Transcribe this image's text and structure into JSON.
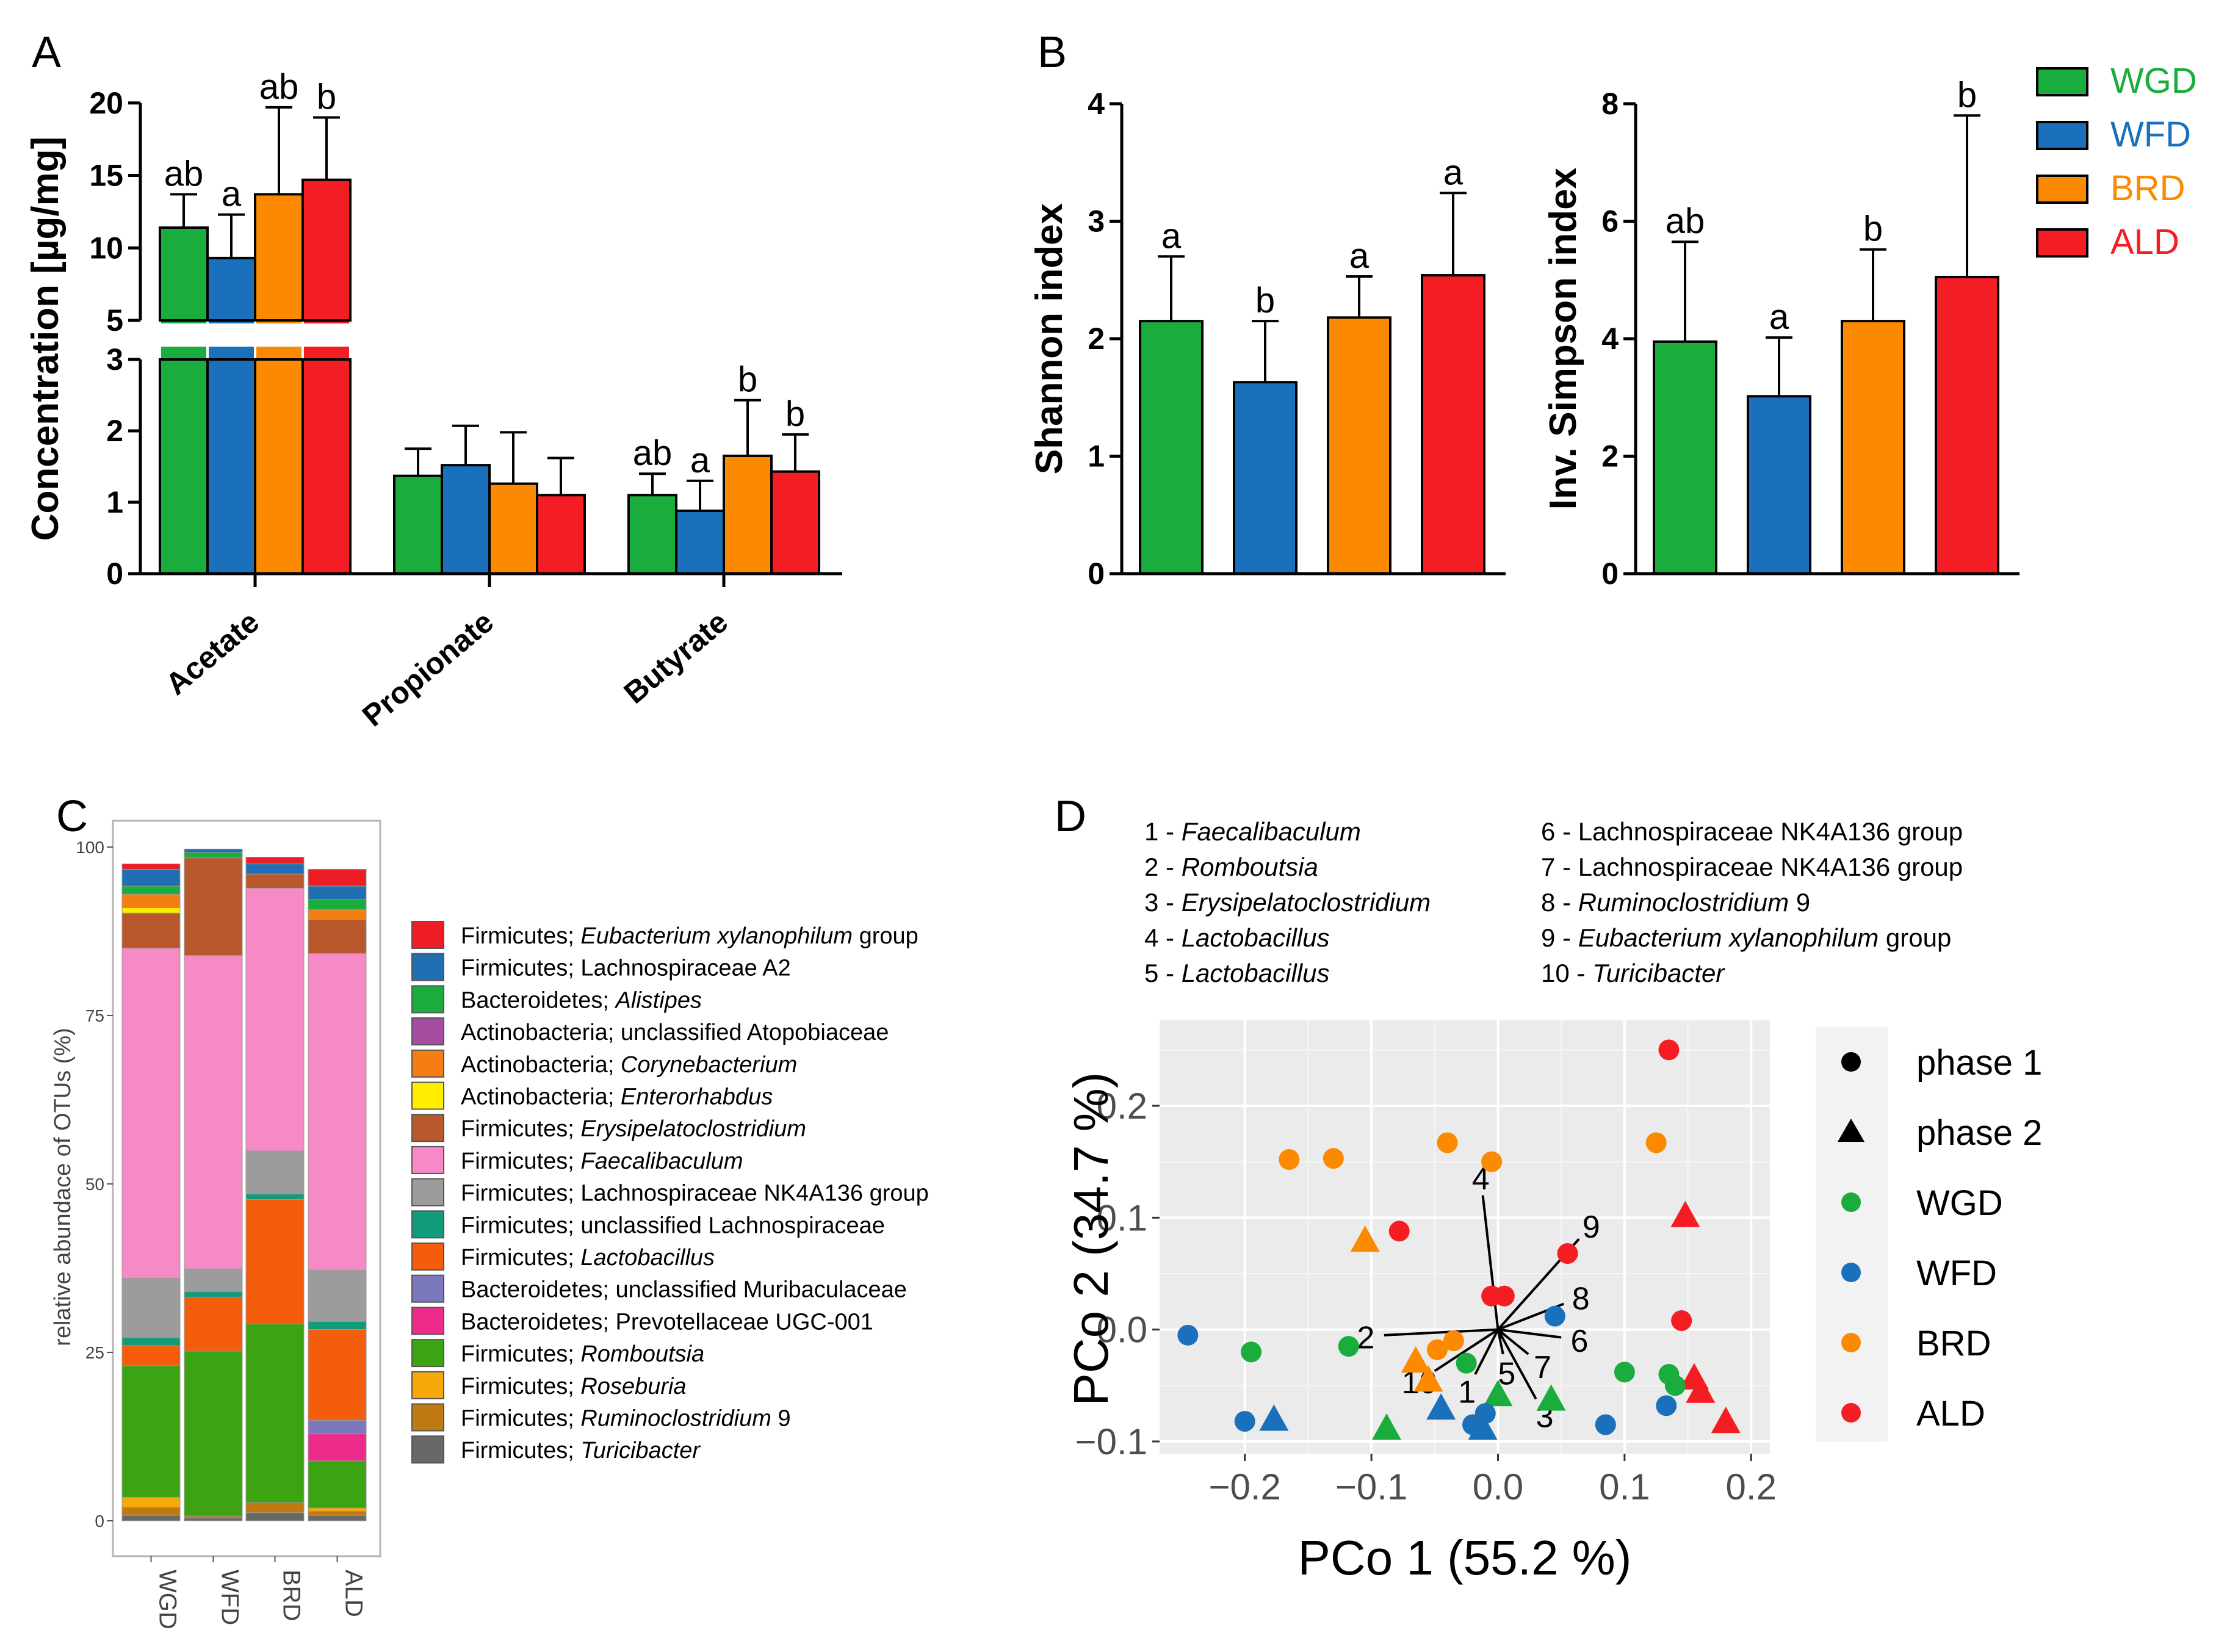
{
  "panels": [
    "A",
    "B",
    "C",
    "D"
  ],
  "colors": {
    "WGD": "#1aad3e",
    "WFD": "#1a70ba",
    "BRD": "#fb8a00",
    "ALD": "#f51d24"
  },
  "chart_data": [
    {
      "panel": "A",
      "type": "bar",
      "ylabel": "Concentration [µg/mg]",
      "y_axis_break": [
        3,
        5
      ],
      "yticks_lower": [
        "0",
        "1",
        "2",
        "3"
      ],
      "yticks_upper": [
        "5",
        "10",
        "15",
        "20"
      ],
      "categories": [
        "Acetate",
        "Propionate",
        "Butyrate"
      ],
      "series": [
        {
          "name": "WGD",
          "values": [
            11.4,
            1.37,
            1.1
          ],
          "errors": [
            2.3,
            0.38,
            0.3
          ],
          "letters": [
            "ab",
            "",
            "ab"
          ]
        },
        {
          "name": "WFD",
          "values": [
            9.3,
            1.52,
            0.88
          ],
          "errors": [
            3.0,
            0.55,
            0.42
          ],
          "letters": [
            "a",
            "",
            "a"
          ]
        },
        {
          "name": "BRD",
          "values": [
            13.7,
            1.26,
            1.65
          ],
          "errors": [
            6.0,
            0.72,
            0.78
          ],
          "letters": [
            "ab",
            "",
            "b"
          ]
        },
        {
          "name": "ALD",
          "values": [
            14.7,
            1.1,
            1.43
          ],
          "errors": [
            4.3,
            0.52,
            0.52
          ],
          "letters": [
            "b",
            "",
            "b"
          ]
        }
      ]
    },
    {
      "panel": "B",
      "type": "bar",
      "ylabel": "Shannon index",
      "ylim": [
        0,
        4
      ],
      "yticks": [
        "0",
        "1",
        "2",
        "3",
        "4"
      ],
      "series": [
        {
          "name": "WGD",
          "value": 2.15,
          "error": 0.55,
          "letter": "a"
        },
        {
          "name": "WFD",
          "value": 1.63,
          "error": 0.52,
          "letter": "b"
        },
        {
          "name": "BRD",
          "value": 2.18,
          "error": 0.35,
          "letter": "a"
        },
        {
          "name": "ALD",
          "value": 2.54,
          "error": 0.7,
          "letter": "a"
        }
      ]
    },
    {
      "panel": "B",
      "type": "bar",
      "ylabel": "Inv. Simpson index",
      "ylim": [
        0,
        8
      ],
      "yticks": [
        "0",
        "2",
        "4",
        "6",
        "8"
      ],
      "series": [
        {
          "name": "WGD",
          "value": 3.95,
          "error": 1.7,
          "letter": "ab"
        },
        {
          "name": "WFD",
          "value": 3.02,
          "error": 1.0,
          "letter": "a"
        },
        {
          "name": "BRD",
          "value": 4.3,
          "error": 1.22,
          "letter": "b"
        },
        {
          "name": "ALD",
          "value": 5.05,
          "error": 2.75,
          "letter": "b"
        }
      ]
    },
    {
      "panel": "C",
      "type": "bar",
      "stacked": true,
      "ylabel": "relative abundace of OTUs (%)",
      "ylim": [
        0,
        100
      ],
      "yticks": [
        "0",
        "25",
        "50",
        "75",
        "100"
      ],
      "categories": [
        "WGD",
        "WFD",
        "BRD",
        "ALD"
      ],
      "legend": [
        {
          "phylum": "Firmicutes; ",
          "taxon": "Eubacterium xylanophilum",
          "suffix": " group",
          "italic": true,
          "color": "#ee1c25"
        },
        {
          "phylum": "Firmicutes; ",
          "taxon": "Lachnospiraceae A2",
          "suffix": "",
          "italic": false,
          "color": "#1f6fb2"
        },
        {
          "phylum": "Bacteroidetes; ",
          "taxon": "Alistipes",
          "suffix": "",
          "italic": true,
          "color": "#1aad3e"
        },
        {
          "phylum": "Actinobacteria; ",
          "taxon": "unclassified Atopobiaceae",
          "suffix": "",
          "italic": false,
          "color": "#a54ea1"
        },
        {
          "phylum": "Actinobacteria; ",
          "taxon": "Corynebacterium",
          "suffix": "",
          "italic": true,
          "color": "#f57e12"
        },
        {
          "phylum": "Actinobacteria; ",
          "taxon": "Enterorhabdus",
          "suffix": "",
          "italic": true,
          "color": "#ffee00"
        },
        {
          "phylum": "Firmicutes; ",
          "taxon": "Erysipelatoclostridium",
          "suffix": "",
          "italic": true,
          "color": "#b9582a"
        },
        {
          "phylum": "Firmicutes; ",
          "taxon": "Faecalibaculum",
          "suffix": "",
          "italic": true,
          "color": "#f68ac7"
        },
        {
          "phylum": "Firmicutes; ",
          "taxon": "Lachnospiraceae NK4A136 group",
          "suffix": "",
          "italic": false,
          "color": "#9c9c9c"
        },
        {
          "phylum": "Firmicutes; ",
          "taxon": "unclassified Lachnospiraceae",
          "suffix": "",
          "italic": false,
          "color": "#109b7a"
        },
        {
          "phylum": "Firmicutes; ",
          "taxon": "Lactobacillus",
          "suffix": "",
          "italic": true,
          "color": "#f45d0c"
        },
        {
          "phylum": "Bacteroidetes; ",
          "taxon": "unclassified Muribaculaceae",
          "suffix": "",
          "italic": false,
          "color": "#7b78bd"
        },
        {
          "phylum": "Bacteroidetes; ",
          "taxon": "Prevotellaceae UGC-001",
          "suffix": "",
          "italic": false,
          "color": "#ee2b8b"
        },
        {
          "phylum": "Firmicutes; ",
          "taxon": "Romboutsia",
          "suffix": "",
          "italic": true,
          "color": "#3ca312"
        },
        {
          "phylum": "Firmicutes; ",
          "taxon": "Roseburia",
          "suffix": "",
          "italic": true,
          "color": "#f7a80a"
        },
        {
          "phylum": "Firmicutes; ",
          "taxon": "Ruminoclostridium",
          "suffix": " 9",
          "italic": true,
          "color": "#bf7b12"
        },
        {
          "phylum": "Firmicutes; ",
          "taxon": "Turicibacter",
          "suffix": "",
          "italic": true,
          "color": "#686868"
        }
      ],
      "stacks": [
        [
          {
            "t": 16,
            "v": 0.8
          },
          {
            "t": 15,
            "v": 1.2
          },
          {
            "t": 14,
            "v": 1.5
          },
          {
            "t": 13,
            "v": 19.5
          },
          {
            "t": 10,
            "v": 3.0
          },
          {
            "t": 9,
            "v": 1.2
          },
          {
            "t": 8,
            "v": 8.8
          },
          {
            "t": 7,
            "v": 49.0
          },
          {
            "t": 6,
            "v": 5.2
          },
          {
            "t": 5,
            "v": 0.8
          },
          {
            "t": 4,
            "v": 2.0
          },
          {
            "t": 2,
            "v": 1.2
          },
          {
            "t": 1,
            "v": 2.5
          },
          {
            "t": 0,
            "v": 0.8
          }
        ],
        [
          {
            "t": 16,
            "v": 0.4
          },
          {
            "t": 15,
            "v": 0.3
          },
          {
            "t": 13,
            "v": 24.5
          },
          {
            "t": 10,
            "v": 8.0
          },
          {
            "t": 9,
            "v": 0.8
          },
          {
            "t": 8,
            "v": 3.4
          },
          {
            "t": 7,
            "v": 46.5
          },
          {
            "t": 6,
            "v": 14.5
          },
          {
            "t": 2,
            "v": 0.8
          },
          {
            "t": 1,
            "v": 0.5
          }
        ],
        [
          {
            "t": 16,
            "v": 1.2
          },
          {
            "t": 15,
            "v": 1.5
          },
          {
            "t": 13,
            "v": 26.5
          },
          {
            "t": 10,
            "v": 18.5
          },
          {
            "t": 9,
            "v": 0.8
          },
          {
            "t": 8,
            "v": 6.4
          },
          {
            "t": 7,
            "v": 39.0
          },
          {
            "t": 6,
            "v": 2.1
          },
          {
            "t": 1,
            "v": 1.5
          },
          {
            "t": 0,
            "v": 1.0
          }
        ],
        [
          {
            "t": 16,
            "v": 0.8
          },
          {
            "t": 15,
            "v": 0.6
          },
          {
            "t": 14,
            "v": 0.5
          },
          {
            "t": 13,
            "v": 7.0
          },
          {
            "t": 12,
            "v": 4.0
          },
          {
            "t": 11,
            "v": 2.0
          },
          {
            "t": 10,
            "v": 13.5
          },
          {
            "t": 9,
            "v": 1.2
          },
          {
            "t": 8,
            "v": 7.6
          },
          {
            "t": 7,
            "v": 47.0
          },
          {
            "t": 6,
            "v": 5.0
          },
          {
            "t": 4,
            "v": 1.5
          },
          {
            "t": 2,
            "v": 1.5
          },
          {
            "t": 1,
            "v": 2.0
          },
          {
            "t": 0,
            "v": 2.5
          }
        ]
      ]
    },
    {
      "panel": "D",
      "type": "scatter",
      "xlabel": "PCo 1 (55.2 %)",
      "ylabel": "PCo 2 (34.7 %)",
      "xlim": [
        -0.25,
        0.21
      ],
      "ylim": [
        -0.1,
        0.26
      ],
      "xticks": [
        -0.2,
        -0.1,
        0.0,
        0.1,
        0.2
      ],
      "xtick_labels": [
        "−0.2",
        "−0.1",
        "0.0",
        "0.1",
        "0.2"
      ],
      "yticks": [
        -0.1,
        0.0,
        0.1,
        0.2
      ],
      "ytick_labels": [
        "−0.1",
        "0.0",
        "0.1",
        "0.2"
      ],
      "taxa_list": [
        {
          "num": "1 - ",
          "name": "Faecalibaculum",
          "suffix": "",
          "italic": true
        },
        {
          "num": "2 - ",
          "name": "Romboutsia",
          "suffix": "",
          "italic": true
        },
        {
          "num": "3 - ",
          "name": "Erysipelatoclostridium",
          "suffix": "",
          "italic": true
        },
        {
          "num": "4 - ",
          "name": "Lactobacillus",
          "suffix": "",
          "italic": true
        },
        {
          "num": "5 - ",
          "name": "Lactobacillus",
          "suffix": "",
          "italic": true
        },
        {
          "num": "6   - ",
          "name": "Lachnospiraceae NK4A136 group",
          "suffix": "",
          "italic": false
        },
        {
          "num": "7   - ",
          "name": "Lachnospiraceae NK4A136 group",
          "suffix": "",
          "italic": false
        },
        {
          "num": "8   - ",
          "name": "Ruminoclostridium",
          "suffix": " 9",
          "italic": true
        },
        {
          "num": "9   - ",
          "name": "Eubacterium xylanophilum",
          "suffix": " group",
          "italic": true
        },
        {
          "num": "10 - ",
          "name": "Turicibacter",
          "suffix": "",
          "italic": true
        }
      ],
      "vectors": [
        {
          "label": "4",
          "x": -0.012,
          "y": 0.12
        },
        {
          "label": "9",
          "x": 0.064,
          "y": 0.081
        },
        {
          "label": "8",
          "x": 0.052,
          "y": 0.023
        },
        {
          "label": "6",
          "x": 0.05,
          "y": -0.007
        },
        {
          "label": "7",
          "x": 0.024,
          "y": -0.022
        },
        {
          "label": "5",
          "x": 0.004,
          "y": -0.022
        },
        {
          "label": "3",
          "x": 0.03,
          "y": -0.062
        },
        {
          "label": "1",
          "x": -0.018,
          "y": -0.04
        },
        {
          "label": "10",
          "x": -0.05,
          "y": -0.037
        },
        {
          "label": "2",
          "x": -0.09,
          "y": -0.005
        }
      ],
      "legend_shapes": [
        {
          "shape": "circle",
          "label": "phase 1"
        },
        {
          "shape": "triangle",
          "label": "phase 2"
        }
      ],
      "legend_groups": [
        "WGD",
        "WFD",
        "BRD",
        "ALD"
      ],
      "points": [
        {
          "x": 0.135,
          "y": 0.25,
          "g": "ALD",
          "p": 1
        },
        {
          "x": 0.005,
          "y": 0.03,
          "g": "ALD",
          "p": 1
        },
        {
          "x": -0.005,
          "y": 0.03,
          "g": "ALD",
          "p": 1
        },
        {
          "x": 0.055,
          "y": 0.068,
          "g": "ALD",
          "p": 1
        },
        {
          "x": -0.078,
          "y": 0.088,
          "g": "ALD",
          "p": 1
        },
        {
          "x": 0.145,
          "y": 0.008,
          "g": "ALD",
          "p": 1
        },
        {
          "x": 0.148,
          "y": 0.102,
          "g": "ALD",
          "p": 2
        },
        {
          "x": 0.155,
          "y": -0.043,
          "g": "ALD",
          "p": 2
        },
        {
          "x": 0.16,
          "y": -0.055,
          "g": "ALD",
          "p": 2
        },
        {
          "x": 0.18,
          "y": -0.082,
          "g": "ALD",
          "p": 2
        },
        {
          "x": -0.165,
          "y": 0.152,
          "g": "BRD",
          "p": 1
        },
        {
          "x": -0.13,
          "y": 0.153,
          "g": "BRD",
          "p": 1
        },
        {
          "x": -0.04,
          "y": 0.167,
          "g": "BRD",
          "p": 1
        },
        {
          "x": -0.005,
          "y": 0.15,
          "g": "BRD",
          "p": 1
        },
        {
          "x": 0.125,
          "y": 0.167,
          "g": "BRD",
          "p": 1
        },
        {
          "x": -0.035,
          "y": -0.01,
          "g": "BRD",
          "p": 1
        },
        {
          "x": -0.048,
          "y": -0.018,
          "g": "BRD",
          "p": 1
        },
        {
          "x": -0.105,
          "y": 0.08,
          "g": "BRD",
          "p": 2
        },
        {
          "x": -0.055,
          "y": -0.045,
          "g": "BRD",
          "p": 2
        },
        {
          "x": -0.065,
          "y": -0.028,
          "g": "BRD",
          "p": 2
        },
        {
          "x": -0.195,
          "y": -0.02,
          "g": "WGD",
          "p": 1
        },
        {
          "x": -0.118,
          "y": -0.015,
          "g": "WGD",
          "p": 1
        },
        {
          "x": -0.025,
          "y": -0.03,
          "g": "WGD",
          "p": 1
        },
        {
          "x": 0.1,
          "y": -0.038,
          "g": "WGD",
          "p": 1
        },
        {
          "x": 0.135,
          "y": -0.04,
          "g": "WGD",
          "p": 1
        },
        {
          "x": 0.14,
          "y": -0.05,
          "g": "WGD",
          "p": 1
        },
        {
          "x": -0.088,
          "y": -0.088,
          "g": "WGD",
          "p": 2
        },
        {
          "x": 0.0,
          "y": -0.058,
          "g": "WGD",
          "p": 2
        },
        {
          "x": 0.042,
          "y": -0.062,
          "g": "WGD",
          "p": 2
        },
        {
          "x": -0.245,
          "y": -0.005,
          "g": "WFD",
          "p": 1
        },
        {
          "x": -0.2,
          "y": -0.082,
          "g": "WFD",
          "p": 1
        },
        {
          "x": 0.045,
          "y": 0.012,
          "g": "WFD",
          "p": 1
        },
        {
          "x": 0.085,
          "y": -0.085,
          "g": "WFD",
          "p": 1
        },
        {
          "x": 0.133,
          "y": -0.068,
          "g": "WFD",
          "p": 1
        },
        {
          "x": -0.01,
          "y": -0.075,
          "g": "WFD",
          "p": 1
        },
        {
          "x": -0.02,
          "y": -0.085,
          "g": "WFD",
          "p": 1
        },
        {
          "x": -0.177,
          "y": -0.08,
          "g": "WFD",
          "p": 2
        },
        {
          "x": -0.045,
          "y": -0.07,
          "g": "WFD",
          "p": 2
        },
        {
          "x": -0.012,
          "y": -0.088,
          "g": "WFD",
          "p": 2
        }
      ]
    }
  ]
}
